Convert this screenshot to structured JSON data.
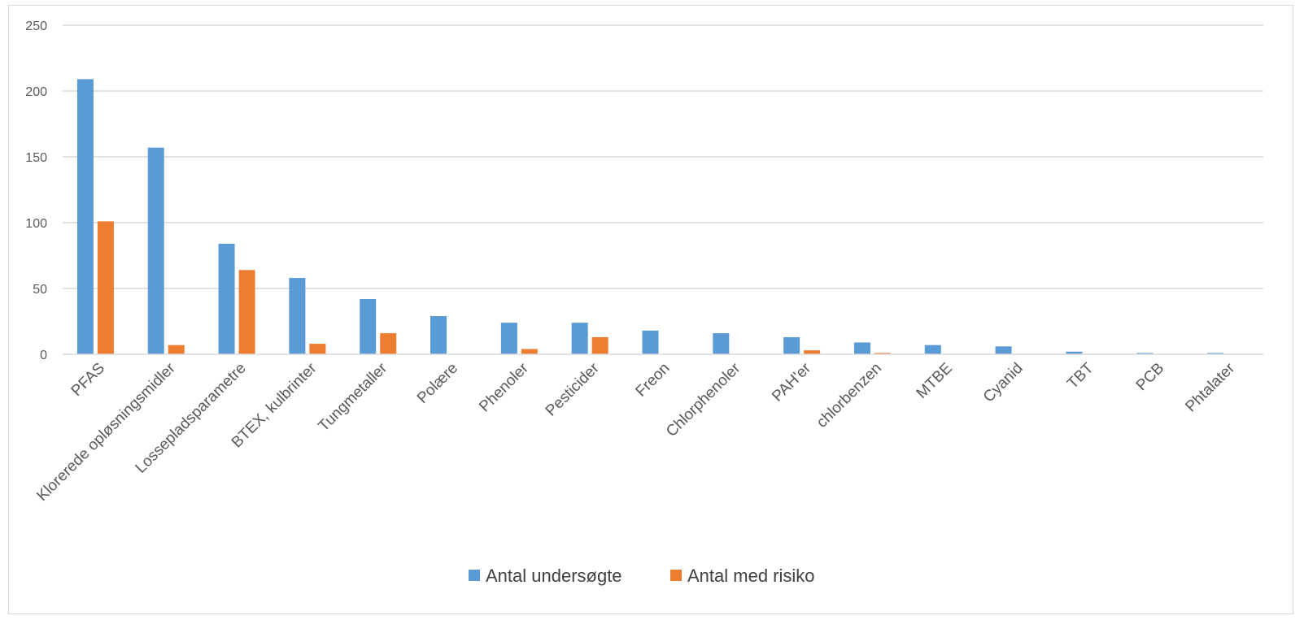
{
  "chart_data": {
    "type": "bar",
    "title": "",
    "xlabel": "",
    "ylabel": "",
    "ylim": [
      0,
      250
    ],
    "yticks": [
      0,
      50,
      100,
      150,
      200,
      250
    ],
    "grid": true,
    "legend_position": "bottom",
    "categories": [
      "PFAS",
      "Klorerede opløsningsmidler",
      "Lossepladsparametre",
      "BTEX, kulbrinter",
      "Tungmetaller",
      "Polære",
      "Phenoler",
      "Pesticider",
      "Freon",
      "Chlorphenoler",
      "PAH'er",
      "chlorbenzen",
      "MTBE",
      "Cyanid",
      "TBT",
      "PCB",
      "Phtalater"
    ],
    "series": [
      {
        "name": "Antal undersøgte",
        "color": "#5b9bd5",
        "values": [
          209,
          157,
          84,
          58,
          42,
          29,
          24,
          24,
          18,
          16,
          13,
          9,
          7,
          6,
          2,
          1,
          1
        ]
      },
      {
        "name": "Antal med risiko",
        "color": "#ed7d31",
        "values": [
          101,
          7,
          64,
          8,
          16,
          0,
          4,
          13,
          0,
          0,
          3,
          1,
          0,
          0,
          0,
          0,
          0
        ]
      }
    ]
  }
}
